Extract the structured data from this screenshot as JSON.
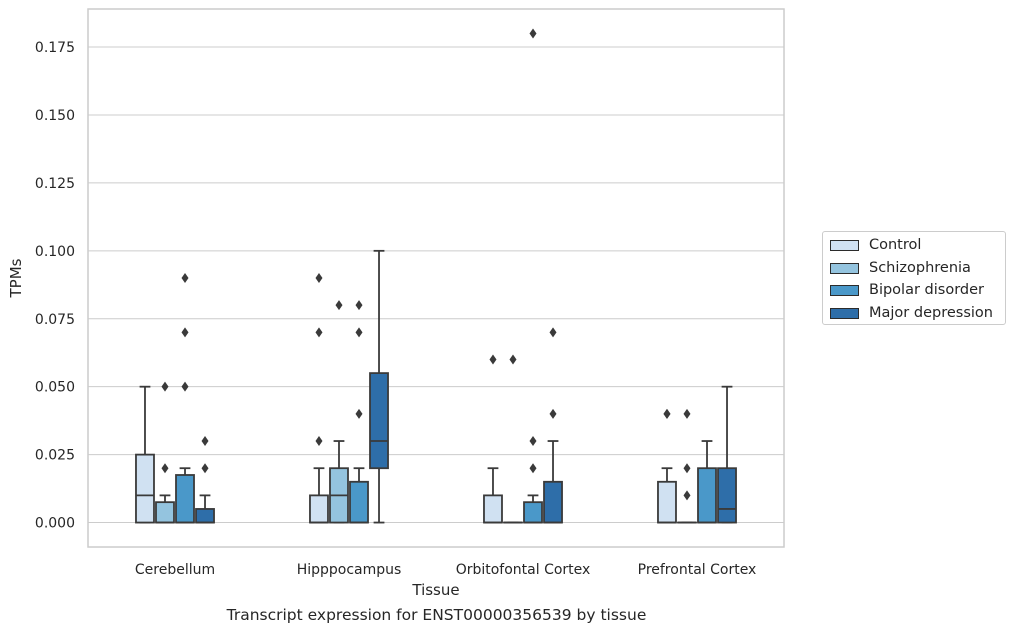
{
  "caption": "Transcript expression for ENST00000356539 by tissue",
  "colors": {
    "Control": "#d0e1f2",
    "Schizophrenia": "#94c4df",
    "Bipolar disorder": "#4a98c9",
    "Major depression": "#2e6ea9",
    "grid": "#cccccc",
    "line": "#3a3a3a"
  },
  "chart_data": {
    "type": "boxplot",
    "xlabel": "Tissue",
    "ylabel": "TPMs",
    "ylim": [
      -0.009,
      0.189
    ],
    "yticks": [
      0.0,
      0.025,
      0.05,
      0.075,
      0.1,
      0.125,
      0.15,
      0.175
    ],
    "ytick_labels": [
      "0.000",
      "0.025",
      "0.050",
      "0.075",
      "0.100",
      "0.125",
      "0.150",
      "0.175"
    ],
    "grid": "horizontal",
    "legend_position": "right",
    "categories": [
      "Cerebellum",
      "Hipppocampus",
      "Orbitofontal Cortex",
      "Prefrontal Cortex"
    ],
    "series": [
      {
        "name": "Control",
        "boxes": [
          {
            "whislo": 0.0,
            "q1": 0.0,
            "med": 0.01,
            "q3": 0.025,
            "whishi": 0.05,
            "fliers": []
          },
          {
            "whislo": 0.0,
            "q1": 0.0,
            "med": 0.0,
            "q3": 0.01,
            "whishi": 0.02,
            "fliers": [
              0.03,
              0.07,
              0.09
            ]
          },
          {
            "whislo": 0.0,
            "q1": 0.0,
            "med": 0.0,
            "q3": 0.01,
            "whishi": 0.02,
            "fliers": [
              0.06
            ]
          },
          {
            "whislo": 0.0,
            "q1": 0.0,
            "med": 0.0,
            "q3": 0.015,
            "whishi": 0.02,
            "fliers": [
              0.04,
              0.04
            ]
          }
        ]
      },
      {
        "name": "Schizophrenia",
        "boxes": [
          {
            "whislo": 0.0,
            "q1": 0.0,
            "med": 0.0,
            "q3": 0.0075,
            "whishi": 0.01,
            "fliers": [
              0.02,
              0.05
            ]
          },
          {
            "whislo": 0.0,
            "q1": 0.0,
            "med": 0.01,
            "q3": 0.02,
            "whishi": 0.03,
            "fliers": [
              0.08
            ]
          },
          {
            "whislo": 0.0,
            "q1": 0.0,
            "med": 0.0,
            "q3": 0.0,
            "whishi": 0.0,
            "fliers": [
              0.06
            ]
          },
          {
            "whislo": 0.0,
            "q1": 0.0,
            "med": 0.0,
            "q3": 0.0,
            "whishi": 0.0,
            "fliers": [
              0.01,
              0.02,
              0.04
            ]
          }
        ]
      },
      {
        "name": "Bipolar disorder",
        "boxes": [
          {
            "whislo": 0.0,
            "q1": 0.0,
            "med": 0.0,
            "q3": 0.0175,
            "whishi": 0.02,
            "fliers": [
              0.05,
              0.07,
              0.09
            ]
          },
          {
            "whislo": 0.0,
            "q1": 0.0,
            "med": 0.0,
            "q3": 0.015,
            "whishi": 0.02,
            "fliers": [
              0.04,
              0.07,
              0.08
            ]
          },
          {
            "whislo": 0.0,
            "q1": 0.0,
            "med": 0.0,
            "q3": 0.0075,
            "whishi": 0.01,
            "fliers": [
              0.02,
              0.03,
              0.18
            ]
          },
          {
            "whislo": 0.0,
            "q1": 0.0,
            "med": 0.0,
            "q3": 0.02,
            "whishi": 0.03,
            "fliers": []
          }
        ]
      },
      {
        "name": "Major depression",
        "boxes": [
          {
            "whislo": 0.0,
            "q1": 0.0,
            "med": 0.0,
            "q3": 0.005,
            "whishi": 0.01,
            "fliers": [
              0.02,
              0.03
            ]
          },
          {
            "whislo": 0.0,
            "q1": 0.02,
            "med": 0.03,
            "q3": 0.055,
            "whishi": 0.1,
            "fliers": []
          },
          {
            "whislo": 0.0,
            "q1": 0.0,
            "med": 0.0,
            "q3": 0.015,
            "whishi": 0.03,
            "fliers": [
              0.04,
              0.07
            ]
          },
          {
            "whislo": 0.0,
            "q1": 0.0,
            "med": 0.005,
            "q3": 0.02,
            "whishi": 0.05,
            "fliers": []
          }
        ]
      }
    ]
  }
}
